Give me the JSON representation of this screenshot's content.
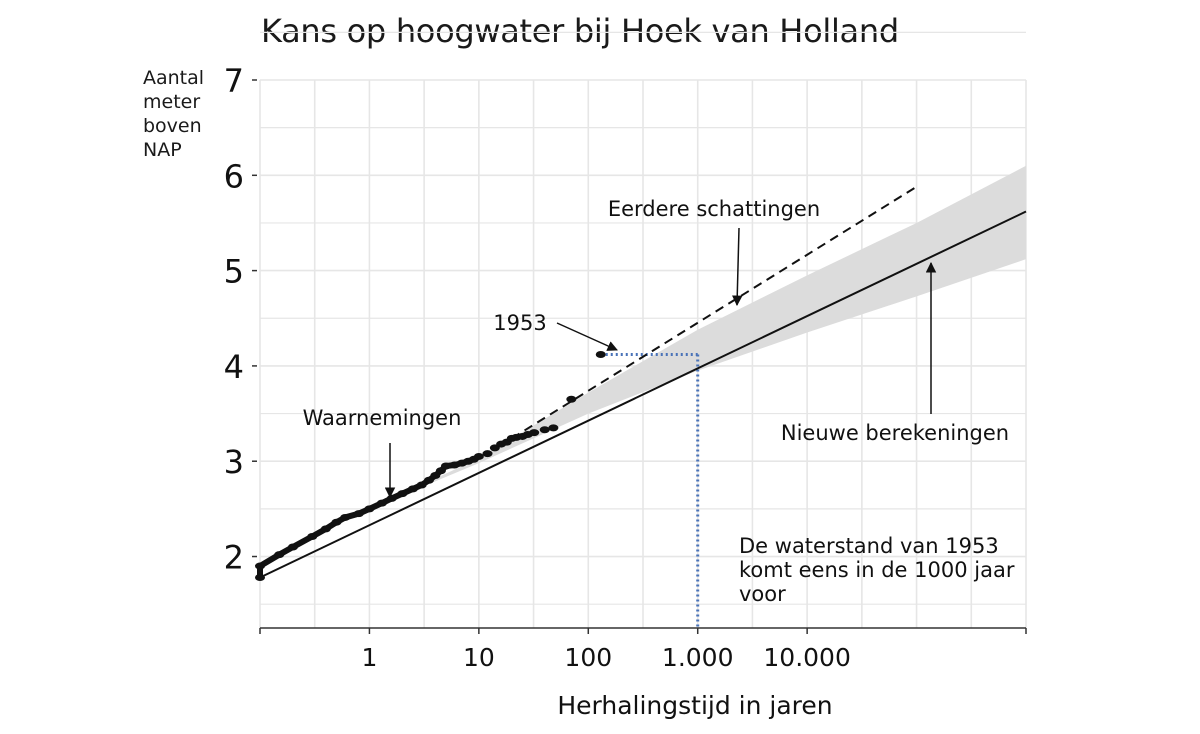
{
  "chart_data": {
    "type": "line",
    "title": "Kans op hoogwater bij Hoek van Holland",
    "xlabel": "Herhalingstijd in jaren",
    "ylabel": [
      "Aantal",
      "meter",
      "boven",
      "NAP"
    ],
    "x_scale": "log10",
    "xlim": [
      0.1,
      1000000
    ],
    "ylim": [
      1.25,
      7
    ],
    "x_ticks": [
      {
        "value": 1,
        "label": "1"
      },
      {
        "value": 10,
        "label": "10"
      },
      {
        "value": 100,
        "label": "100"
      },
      {
        "value": 1000,
        "label": "1.000"
      },
      {
        "value": 10000,
        "label": "10.000"
      }
    ],
    "y_ticks": [
      {
        "value": 2,
        "label": "2"
      },
      {
        "value": 3,
        "label": "3"
      },
      {
        "value": 4,
        "label": "4"
      },
      {
        "value": 5,
        "label": "5"
      },
      {
        "value": 6,
        "label": "6"
      },
      {
        "value": 7,
        "label": "7"
      }
    ],
    "grid": true,
    "series": [
      {
        "name": "Nieuwe berekeningen",
        "style": "solid",
        "x": [
          0.067,
          1000000
        ],
        "y": [
          1.78,
          5.62
        ]
      },
      {
        "name": "Eerdere schattingen",
        "style": "dashed",
        "x": [
          20,
          100000
        ],
        "y": [
          3.24,
          5.88
        ]
      },
      {
        "name": "Nieuwe berekeningen onzekerheid",
        "style": "band",
        "x": [
          0.067,
          1,
          10,
          100,
          1000,
          10000,
          100000,
          1000000
        ],
        "y_low": [
          1.78,
          2.5,
          2.98,
          3.5,
          3.95,
          4.35,
          4.73,
          5.12
        ],
        "y_high": [
          1.78,
          2.5,
          3.03,
          3.72,
          4.38,
          4.95,
          5.5,
          6.1
        ]
      },
      {
        "name": "Waarnemingen",
        "style": "points",
        "x": [
          0.07,
          0.1,
          0.15,
          0.2,
          0.3,
          0.4,
          0.5,
          0.6,
          0.8,
          1,
          1.3,
          1.6,
          2,
          2.5,
          3,
          3.5,
          4,
          4.5,
          5,
          6,
          7,
          8,
          9,
          10,
          12,
          14,
          16,
          18,
          20,
          22,
          25,
          28,
          32,
          40,
          48,
          70,
          130
        ],
        "y": [
          1.78,
          1.9,
          2.02,
          2.1,
          2.21,
          2.29,
          2.36,
          2.41,
          2.45,
          2.5,
          2.56,
          2.61,
          2.66,
          2.71,
          2.75,
          2.8,
          2.85,
          2.9,
          2.95,
          2.96,
          2.98,
          3.0,
          3.02,
          3.05,
          3.08,
          3.14,
          3.18,
          3.2,
          3.24,
          3.25,
          3.26,
          3.28,
          3.3,
          3.33,
          3.35,
          3.65,
          4.12
        ]
      }
    ],
    "reference_1953": {
      "x": 1000,
      "y": 4.12,
      "style": "dotted",
      "color": "#4a73b8"
    },
    "annotations": [
      {
        "text": "Eerdere schattingen",
        "target_x": 1300,
        "target_y": 4.6
      },
      {
        "text": "1953",
        "target_x": 110,
        "target_y": 4.15
      },
      {
        "text": "Waarnemingen",
        "target_x": 0.75,
        "target_y": 2.6
      },
      {
        "text": "Nieuwe berekeningen",
        "target_x": 100000,
        "target_y": 5.0
      },
      {
        "text": [
          "De waterstand van 1953",
          "komt eens in de 1000 jaar",
          "voor"
        ],
        "target_x": null,
        "target_y": null
      }
    ],
    "colors": {
      "line": "#111111",
      "band": "#dcdcdc",
      "grid": "#e6e6e6",
      "reference": "#4a73b8"
    }
  }
}
